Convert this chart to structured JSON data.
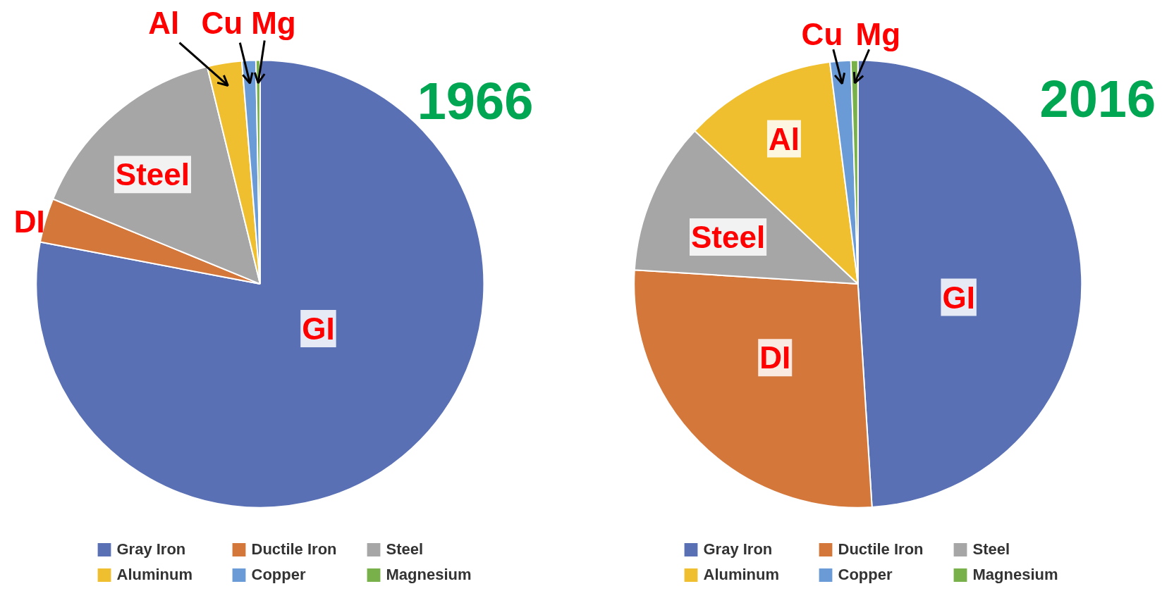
{
  "chart_data": [
    {
      "type": "pie",
      "title": "1966",
      "categories": [
        "Gray Iron",
        "Ductile Iron",
        "Steel",
        "Aluminum",
        "Copper",
        "Magnesium"
      ],
      "values": [
        78,
        3.2,
        15,
        2.5,
        1,
        0.3
      ],
      "colors": [
        "#5a70b5",
        "#d4773a",
        "#a6a6a6",
        "#efbf2f",
        "#6b9bd6",
        "#78b04a"
      ],
      "value_labels": [
        "GI",
        "DI",
        "Steel",
        "Al",
        "Cu",
        "Mg"
      ],
      "legend": "bottom"
    },
    {
      "type": "pie",
      "title": "2016",
      "categories": [
        "Gray Iron",
        "Ductile Iron",
        "Steel",
        "Aluminum",
        "Copper",
        "Magnesium"
      ],
      "values": [
        49,
        27,
        11,
        11,
        1.5,
        0.5
      ],
      "colors": [
        "#5a70b5",
        "#d4773a",
        "#a6a6a6",
        "#efbf2f",
        "#6b9bd6",
        "#78b04a"
      ],
      "value_labels": [
        "GI",
        "DI",
        "Steel",
        "Al",
        "Cu",
        "Mg"
      ],
      "legend": "bottom"
    }
  ]
}
